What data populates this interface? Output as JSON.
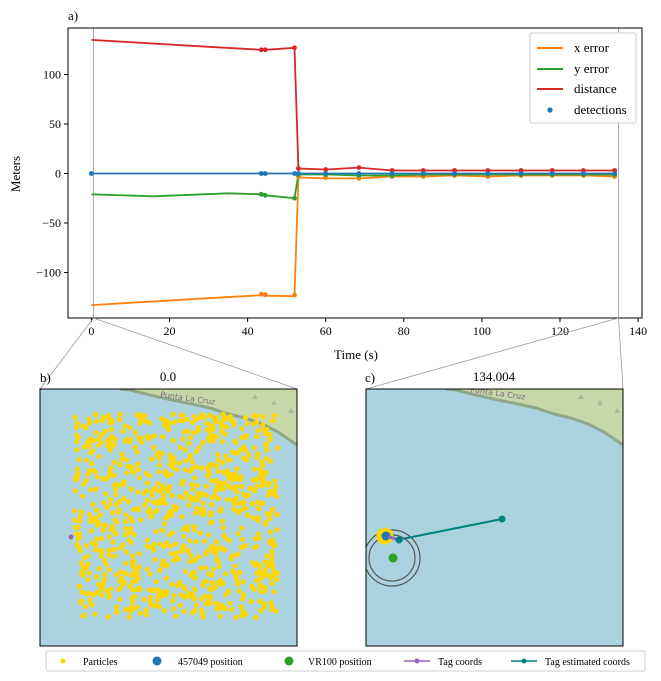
{
  "colors": {
    "x_error": "#ff7f0e",
    "y_error": "#2ca02c",
    "distance": "#d62728",
    "detections": "#1f77b4",
    "particles": "#ffd700",
    "tag_coords": "#9467bd",
    "tag_estimated": "#008080",
    "water": "#aad3df",
    "land": "#c8d7a8"
  },
  "panels": {
    "a": {
      "label": "a)"
    },
    "b": {
      "label": "b)",
      "title": "0.0",
      "map_text": "Punta La Cruz"
    },
    "c": {
      "label": "c)",
      "title": "134.004",
      "map_text": "Punta La Cruz"
    }
  },
  "chart_data": [
    {
      "type": "line",
      "panel": "a",
      "xlabel": "Time (s)",
      "ylabel": "Meters",
      "xlim": [
        -6,
        141
      ],
      "ylim": [
        -146,
        147
      ],
      "xticks": [
        0,
        20,
        40,
        60,
        80,
        100,
        120,
        140
      ],
      "yticks": [
        -100,
        -50,
        0,
        50,
        100
      ],
      "legend_position": "top-right",
      "series": [
        {
          "name": "x error",
          "kind": "line",
          "color_key": "x_error",
          "x": [
            0,
            30,
            43.5,
            44.5,
            52,
            53,
            60,
            68.5,
            77,
            85,
            93,
            101.5,
            110,
            118,
            126,
            134
          ],
          "y": [
            -133,
            -126,
            -123,
            -123.5,
            -124,
            -4,
            -5,
            -5,
            -3,
            -3,
            -2,
            -3,
            -2,
            -2,
            -2,
            -3
          ]
        },
        {
          "name": "y error",
          "kind": "line",
          "color_key": "y_error",
          "x": [
            0,
            16,
            35,
            43.5,
            44.5,
            52,
            53,
            60,
            68.5,
            77,
            85,
            93,
            101.5,
            110,
            118,
            126,
            134
          ],
          "y": [
            -21,
            -23,
            -20,
            -21,
            -22,
            -25,
            -1,
            -1,
            -2,
            -2,
            -1,
            -1,
            -1,
            -1,
            -1,
            -1,
            -1
          ]
        },
        {
          "name": "distance",
          "kind": "line",
          "color_key": "distance",
          "x": [
            0,
            30,
            43.5,
            44.5,
            52,
            53,
            60,
            68.5,
            77,
            85,
            93,
            101.5,
            110,
            118,
            126,
            134
          ],
          "y": [
            135,
            128,
            125,
            125,
            127,
            5,
            4,
            6,
            3,
            3,
            3,
            3,
            3,
            3,
            3,
            3
          ]
        },
        {
          "name": "detections",
          "kind": "scatter",
          "color_key": "detections",
          "x": [
            0,
            43.5,
            44.5,
            52,
            53,
            60,
            68.5,
            77,
            85,
            93,
            101.5,
            110,
            118,
            126,
            134
          ],
          "y": [
            0,
            0,
            0,
            0,
            0,
            0,
            0,
            0,
            0,
            0,
            0,
            0,
            0,
            0,
            0
          ]
        }
      ],
      "marker_points": {
        "x_error": [
          [
            43.5,
            -122
          ],
          [
            44.5,
            -122.5
          ],
          [
            52,
            -123
          ],
          [
            53,
            -3
          ],
          [
            60,
            -4
          ],
          [
            68.5,
            -5
          ],
          [
            77,
            -3
          ],
          [
            85,
            -3
          ],
          [
            93,
            -2
          ],
          [
            101.5,
            -3
          ],
          [
            110,
            -2
          ],
          [
            118,
            -2
          ],
          [
            126,
            -2
          ],
          [
            134,
            -3
          ]
        ],
        "y_error": [
          [
            43.5,
            -21
          ],
          [
            44.5,
            -22
          ],
          [
            52,
            -25
          ],
          [
            53,
            -1
          ],
          [
            60,
            -1
          ],
          [
            68.5,
            -2
          ],
          [
            77,
            -2
          ],
          [
            85,
            -1
          ],
          [
            93,
            -1
          ],
          [
            101.5,
            -1
          ],
          [
            110,
            -1
          ],
          [
            118,
            -1
          ],
          [
            126,
            -1
          ],
          [
            134,
            -1
          ]
        ],
        "distance": [
          [
            43.5,
            125
          ],
          [
            44.5,
            125
          ],
          [
            52,
            127
          ],
          [
            53,
            5
          ],
          [
            60,
            4
          ],
          [
            68.5,
            6
          ],
          [
            77,
            3
          ],
          [
            85,
            3
          ],
          [
            93,
            3
          ],
          [
            101.5,
            3
          ],
          [
            110,
            3
          ],
          [
            118,
            3
          ],
          [
            126,
            3
          ],
          [
            134,
            3
          ]
        ]
      }
    }
  ],
  "legend_bottom": [
    {
      "label": "Particles",
      "kind": "dot",
      "color_key": "particles"
    },
    {
      "label": "457049 position",
      "kind": "bigdot",
      "color_key": "detections"
    },
    {
      "label": "VR100 position",
      "kind": "bigdot",
      "color_key": "y_error"
    },
    {
      "label": "Tag coords",
      "kind": "line-dot",
      "color_key": "tag_coords"
    },
    {
      "label": "Tag estimated coords",
      "kind": "line-dot",
      "color_key": "tag_estimated"
    }
  ]
}
